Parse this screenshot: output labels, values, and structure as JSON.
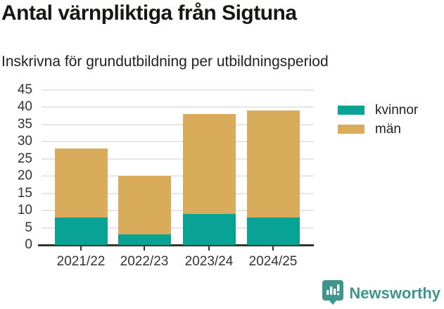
{
  "header": {
    "title": "Antal värnpliktiga från Sigtuna",
    "subtitle": "Inskrivna för grundutbildning per utbildningsperiod"
  },
  "chart_data": {
    "type": "bar",
    "stacked": true,
    "title": "Antal värnpliktiga från Sigtuna",
    "subtitle": "Inskrivna för grundutbildning per utbildningsperiod",
    "categories": [
      "2021/22",
      "2022/23",
      "2023/24",
      "2024/25"
    ],
    "series": [
      {
        "name": "kvinnor",
        "color": "#09A396",
        "values": [
          8,
          3,
          9,
          8
        ]
      },
      {
        "name": "män",
        "color": "#D9AC5B",
        "values": [
          20,
          17,
          29,
          31
        ]
      }
    ],
    "stack_totals": [
      28,
      20,
      38,
      39
    ],
    "xlabel": "",
    "ylabel": "",
    "ylim": [
      0,
      45
    ],
    "ytick_step": 5,
    "yticks": [
      0,
      5,
      10,
      15,
      20,
      25,
      30,
      35,
      40,
      45
    ],
    "grid": true,
    "legend_position": "right"
  },
  "footer": {
    "brand": "Newsworthy",
    "logo_icon": "bar-chart-speech-bubble",
    "brand_color": "#40948E"
  },
  "colors": {
    "kvinnor": "#09A396",
    "man": "#D9AC5B",
    "axis_text": "#333333",
    "gridline": "#e6e6e6",
    "axis_line": "#333333",
    "title_text": "#161613"
  }
}
